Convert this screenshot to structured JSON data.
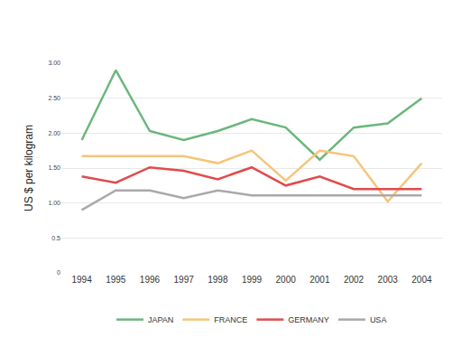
{
  "chart_data": {
    "type": "line",
    "y_label": "US $ per kilogram",
    "categories": [
      "1994",
      "1995",
      "1996",
      "1997",
      "1998",
      "1999",
      "2000",
      "2001",
      "2002",
      "2003",
      "2004"
    ],
    "series": [
      {
        "name": "JAPAN",
        "color": "#6cb67c",
        "values": [
          1.9,
          2.9,
          2.03,
          1.9,
          2.03,
          2.2,
          2.08,
          1.62,
          2.08,
          2.14,
          2.5
        ]
      },
      {
        "name": "FRANCE",
        "color": "#f6c47b",
        "values": [
          1.67,
          1.67,
          1.67,
          1.67,
          1.57,
          1.75,
          1.32,
          1.75,
          1.67,
          1.02,
          1.57
        ]
      },
      {
        "name": "GERMANY",
        "color": "#e04b4b",
        "values": [
          1.38,
          1.29,
          1.51,
          1.46,
          1.34,
          1.51,
          1.25,
          1.38,
          1.2,
          1.2,
          1.2
        ]
      },
      {
        "name": "USA",
        "color": "#a9a9a9",
        "values": [
          0.9,
          1.18,
          1.18,
          1.07,
          1.18,
          1.11,
          1.11,
          1.11,
          1.11,
          1.11,
          1.11
        ]
      }
    ],
    "ylim": [
      0,
      3
    ],
    "yticks": [
      0,
      0.5,
      {
        "value": 1,
        "label": "1.00"
      },
      {
        "value": 1.5,
        "label": "1.50"
      },
      {
        "value": 2,
        "label": "2.00"
      },
      {
        "value": 2.5,
        "label": "2.50"
      },
      {
        "value": 3,
        "label": "3.00"
      }
    ],
    "grid": true,
    "legend": "bottom"
  }
}
